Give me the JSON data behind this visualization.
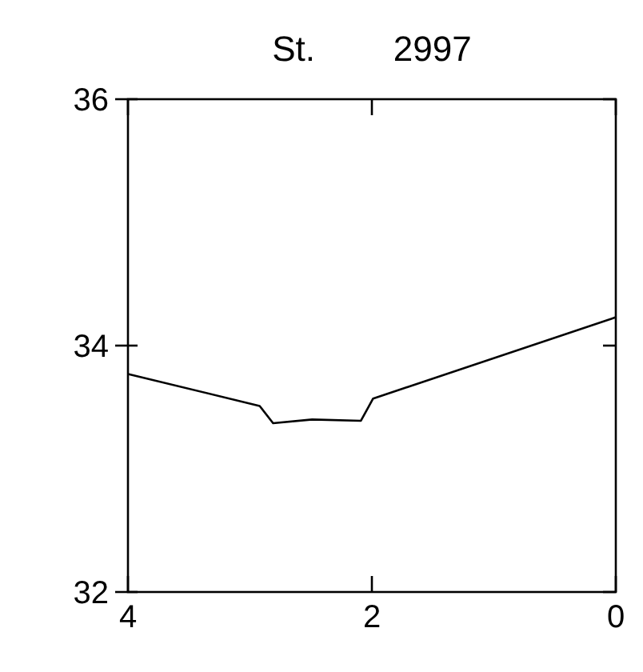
{
  "chart_data": {
    "type": "line",
    "title": "St. 2997",
    "x": [
      4,
      2.92,
      2.81,
      2.49,
      2.09,
      1.99,
      0
    ],
    "series": [
      {
        "color": "#000000",
        "values": [
          33.77,
          33.51,
          33.37,
          33.4,
          33.39,
          33.57,
          34.23
        ]
      }
    ],
    "xlim": [
      4,
      0
    ],
    "xticks": [
      4,
      2,
      0
    ],
    "ylim": [
      32,
      36
    ],
    "yticks": [
      32,
      34,
      36
    ],
    "grid": false,
    "marker": "none",
    "line_style": "solid"
  }
}
